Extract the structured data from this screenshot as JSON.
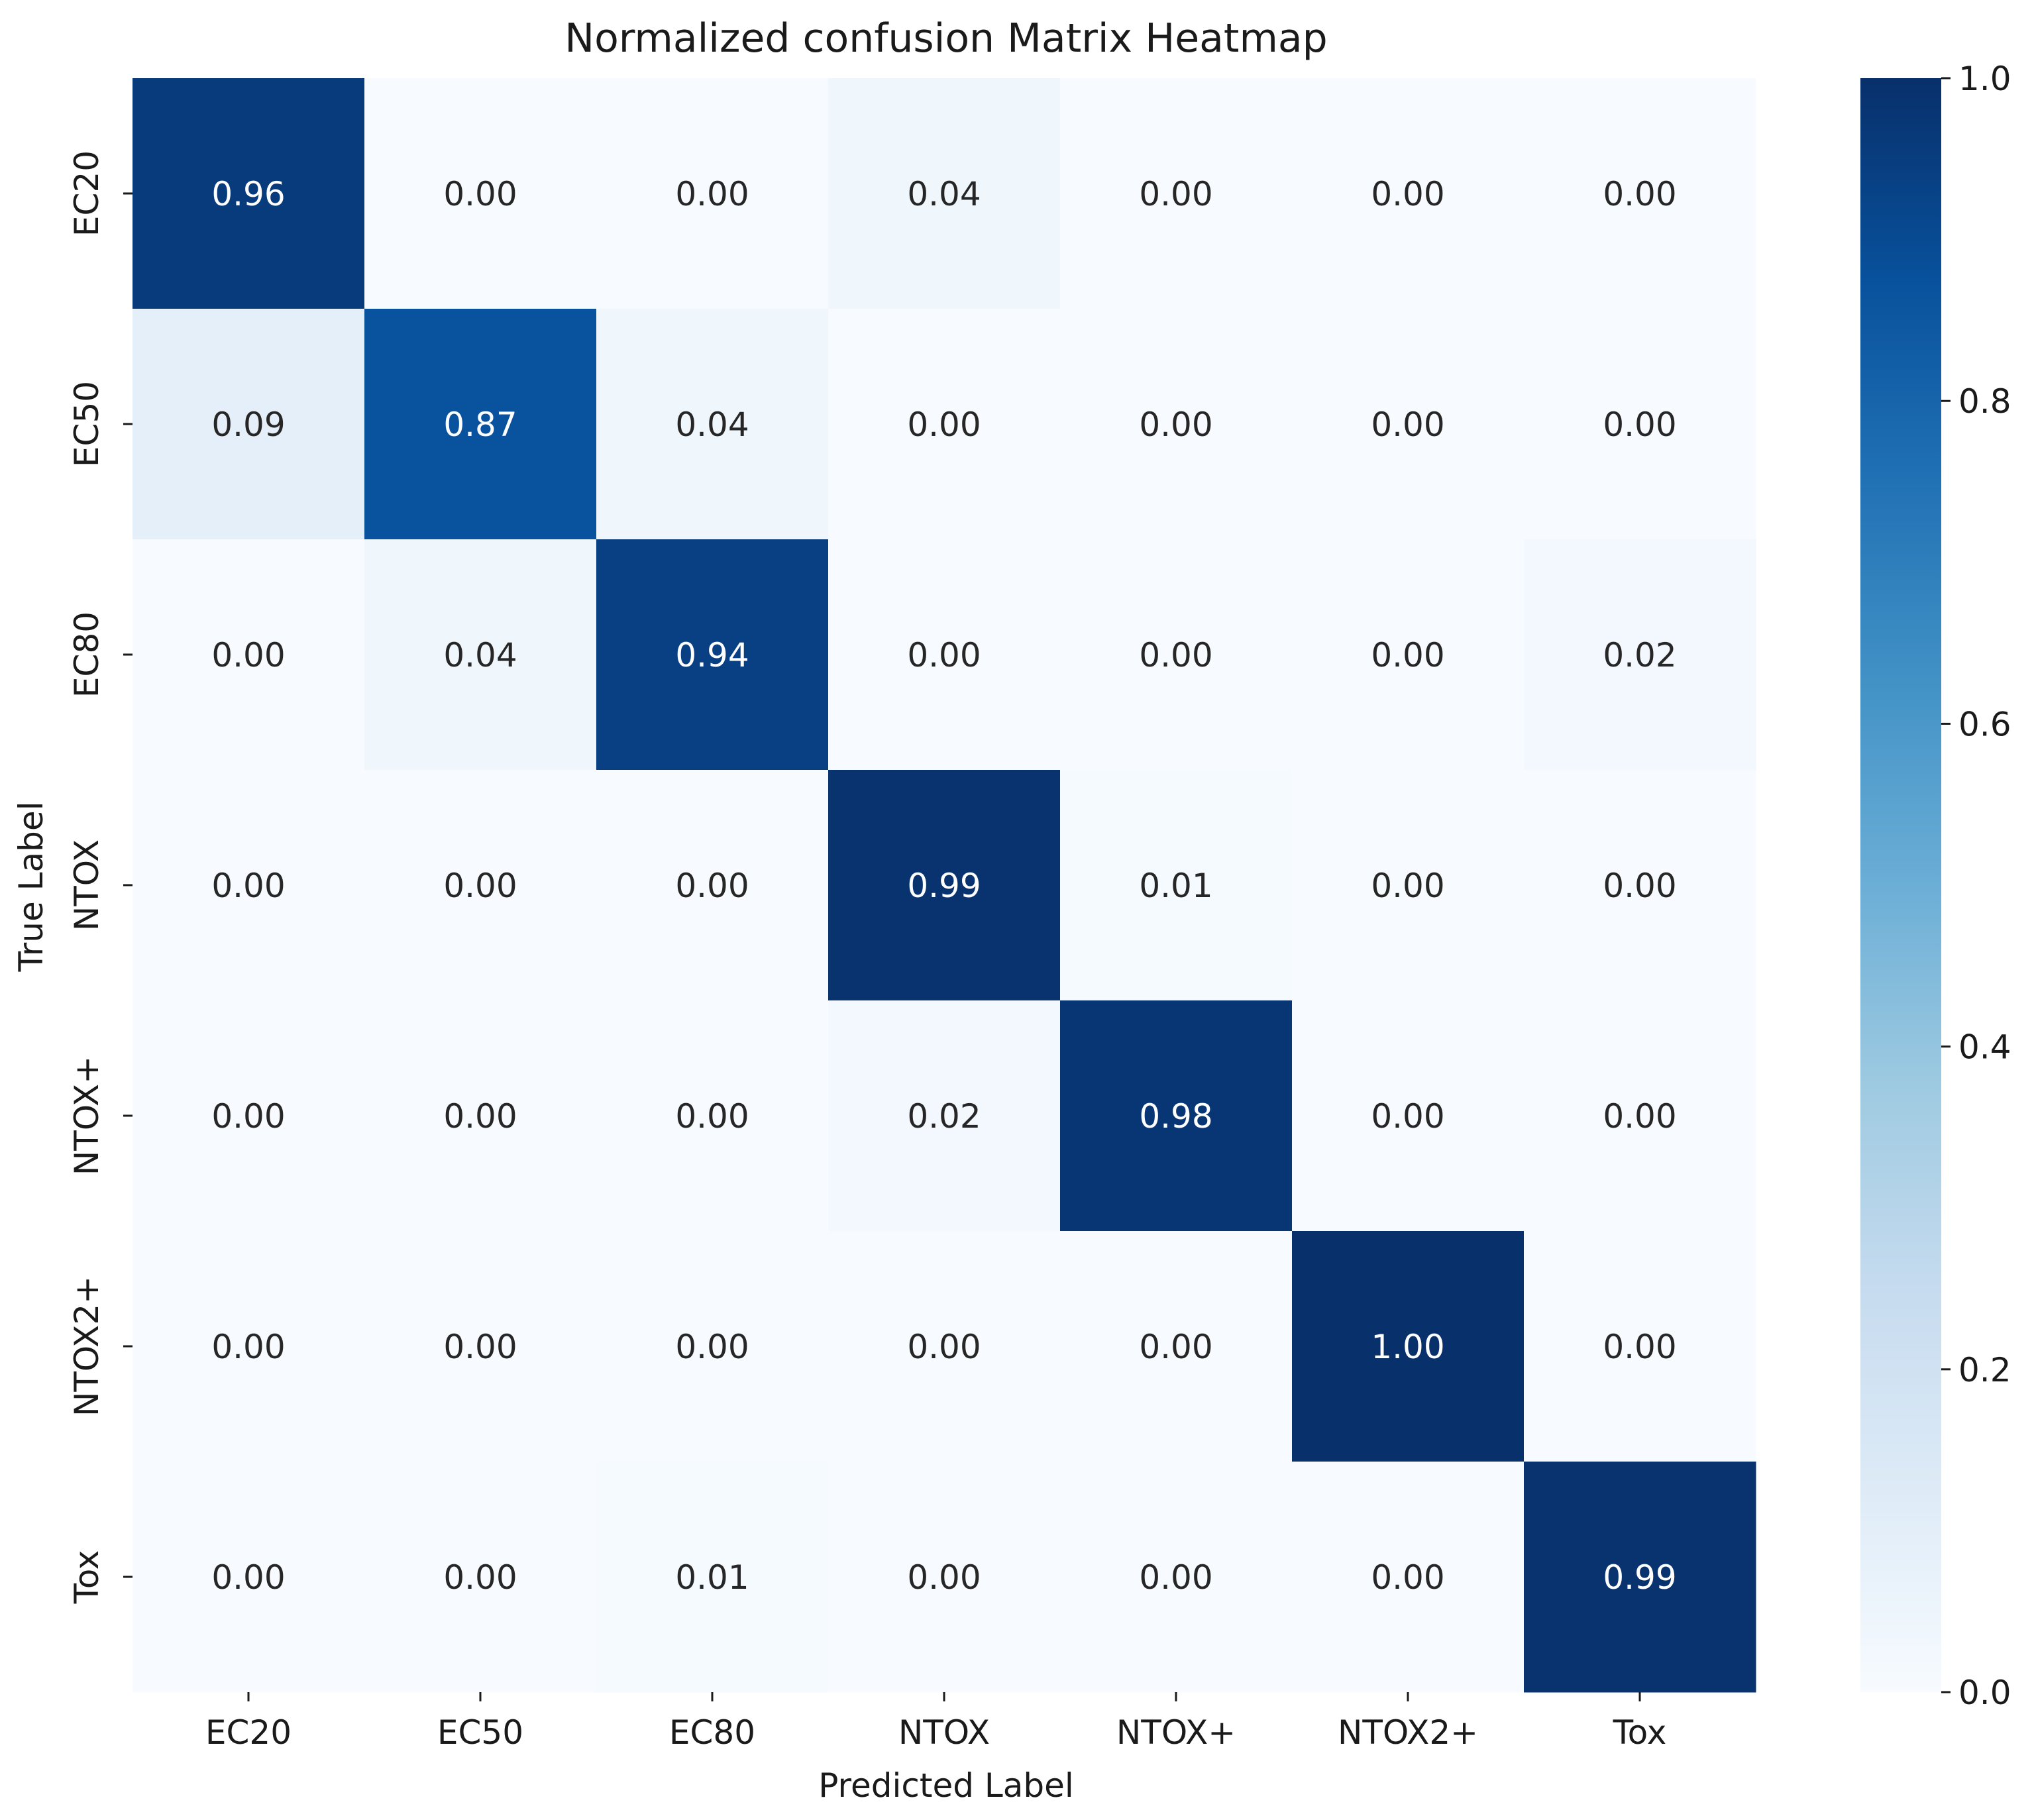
{
  "chart_data": {
    "type": "heatmap",
    "title": "Normalized confusion Matrix Heatmap",
    "xlabel": "Predicted Label",
    "ylabel": "True Label",
    "x_categories": [
      "EC20",
      "EC50",
      "EC80",
      "NTOX",
      "NTOX+",
      "NTOX2+",
      "Tox"
    ],
    "y_categories": [
      "EC20",
      "EC50",
      "EC80",
      "NTOX",
      "NTOX+",
      "NTOX2+",
      "Tox"
    ],
    "values": [
      [
        0.96,
        0.0,
        0.0,
        0.04,
        0.0,
        0.0,
        0.0
      ],
      [
        0.09,
        0.87,
        0.04,
        0.0,
        0.0,
        0.0,
        0.0
      ],
      [
        0.0,
        0.04,
        0.94,
        0.0,
        0.0,
        0.0,
        0.02
      ],
      [
        0.0,
        0.0,
        0.0,
        0.99,
        0.01,
        0.0,
        0.0
      ],
      [
        0.0,
        0.0,
        0.0,
        0.02,
        0.98,
        0.0,
        0.0
      ],
      [
        0.0,
        0.0,
        0.0,
        0.0,
        0.0,
        1.0,
        0.0
      ],
      [
        0.0,
        0.0,
        0.01,
        0.0,
        0.0,
        0.0,
        0.99
      ]
    ],
    "value_format": "0.00",
    "colormap": "Blues",
    "colormap_stops": [
      "#f7fbff",
      "#deebf7",
      "#c6dbef",
      "#9ecae1",
      "#6baed6",
      "#4292c6",
      "#2171b5",
      "#08519c",
      "#08306b"
    ],
    "annotation_color_light": "#ffffff",
    "annotation_color_dark": "#262626",
    "colorbar": {
      "range": [
        0.0,
        1.0
      ],
      "ticks": [
        "0.0",
        "0.2",
        "0.4",
        "0.6",
        "0.8",
        "1.0"
      ]
    }
  }
}
